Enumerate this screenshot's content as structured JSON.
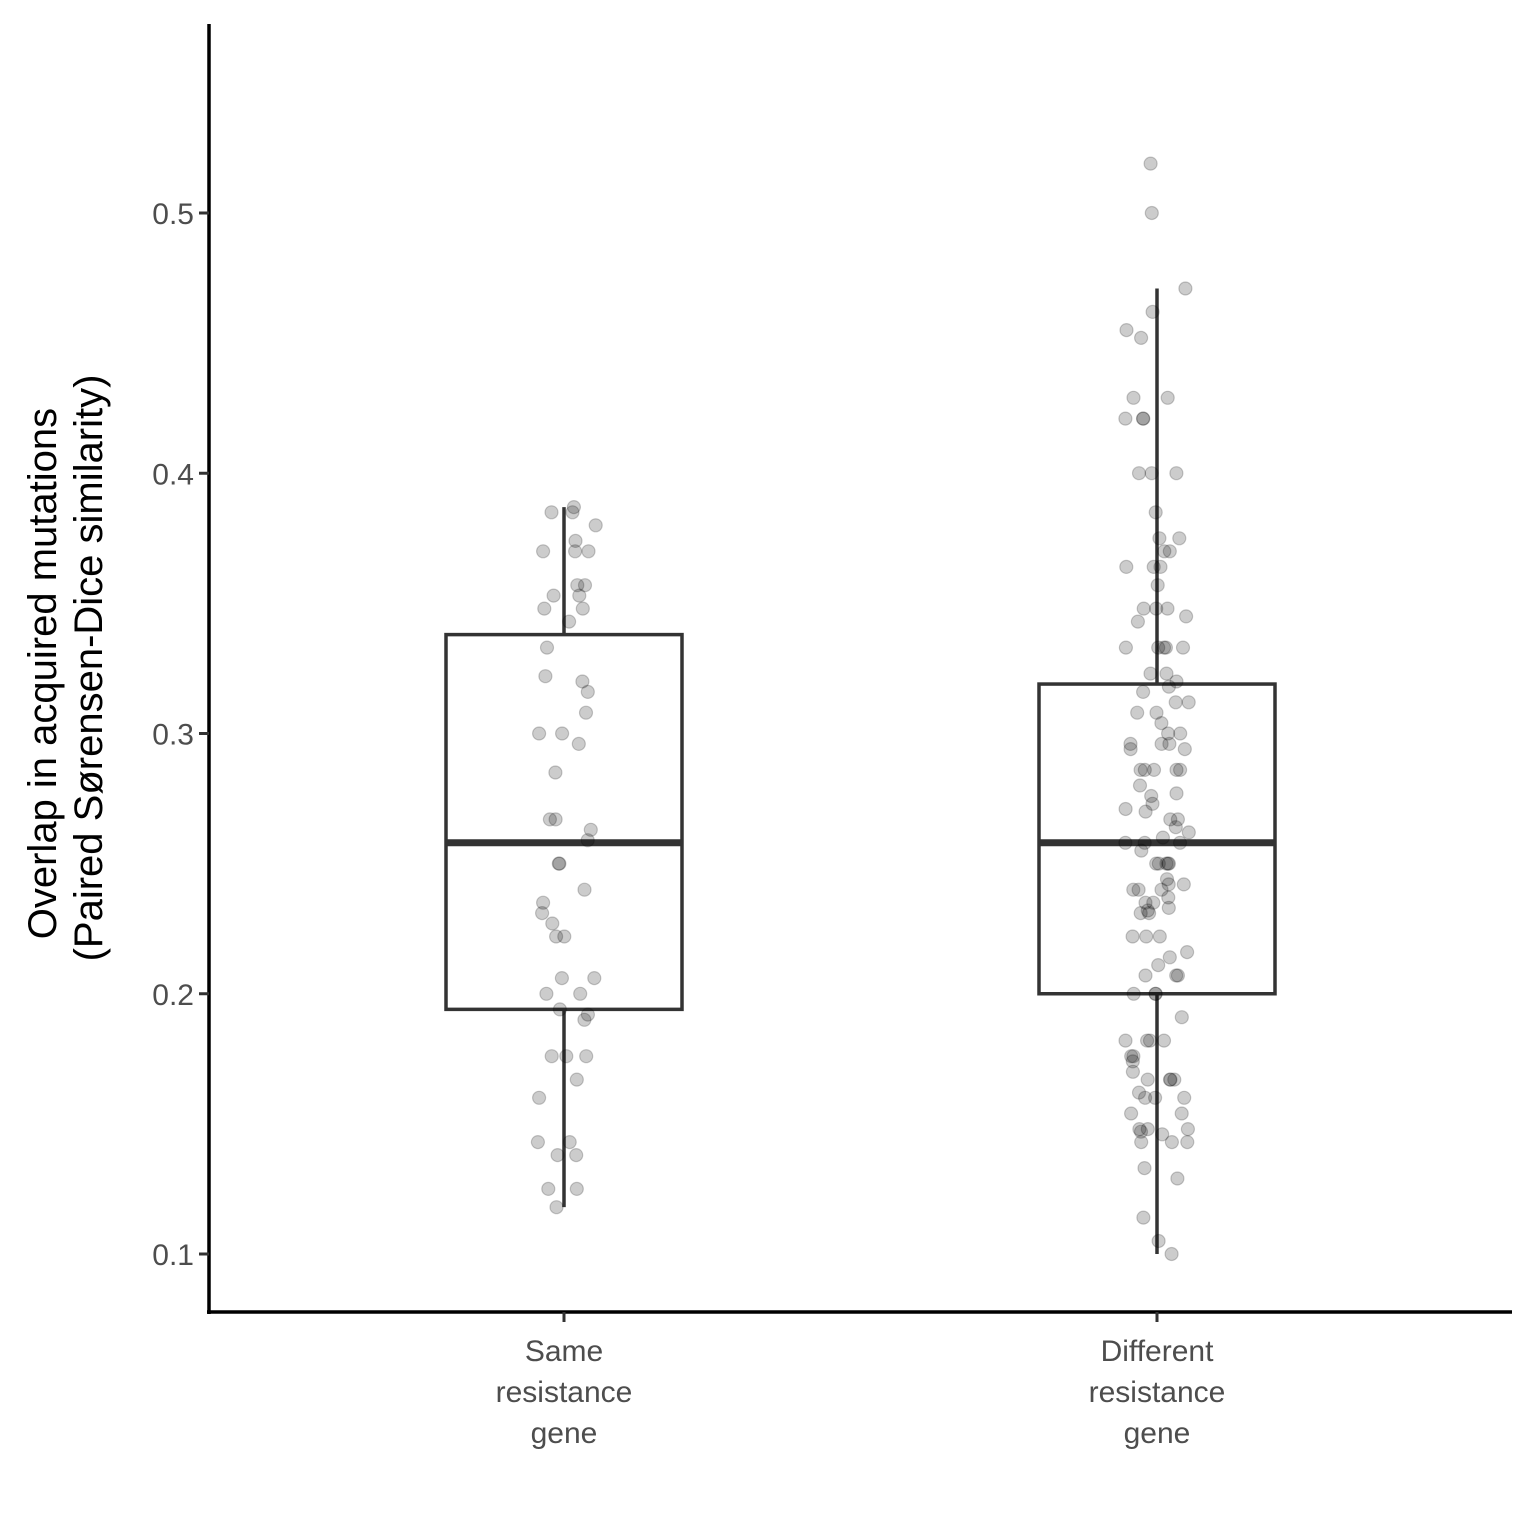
{
  "chart_data": {
    "type": "box",
    "title": "",
    "ylabel_lines": [
      "Overlap in acquired mutations",
      "(Paired Sørensen-Dice similarity)"
    ],
    "xlabel": "",
    "ylim": [
      0.078,
      0.57
    ],
    "yticks": [
      0.1,
      0.2,
      0.3,
      0.4,
      0.5
    ],
    "ytick_labels": [
      "0.1",
      "0.2",
      "0.3",
      "0.4",
      "0.5"
    ],
    "grid": false,
    "categories": [
      {
        "lines": [
          "Same",
          "resistance",
          "gene"
        ]
      },
      {
        "lines": [
          "Different",
          "resistance",
          "gene"
        ]
      }
    ],
    "boxes": [
      {
        "category": 0,
        "whisker_low": 0.118,
        "q1": 0.194,
        "median": 0.258,
        "q3": 0.338,
        "whisker_high": 0.387
      },
      {
        "category": 1,
        "whisker_low": 0.1,
        "q1": 0.2,
        "median": 0.258,
        "q3": 0.319,
        "whisker_high": 0.471
      }
    ],
    "points": [
      {
        "category": 0,
        "values": [
          0.387,
          0.385,
          0.385,
          0.38,
          0.374,
          0.37,
          0.37,
          0.37,
          0.357,
          0.357,
          0.353,
          0.353,
          0.348,
          0.348,
          0.343,
          0.333,
          0.322,
          0.32,
          0.316,
          0.308,
          0.3,
          0.3,
          0.296,
          0.285,
          0.267,
          0.267,
          0.263,
          0.259,
          0.25,
          0.25,
          0.24,
          0.235,
          0.231,
          0.227,
          0.222,
          0.222,
          0.206,
          0.206,
          0.2,
          0.2,
          0.194,
          0.192,
          0.19,
          0.176,
          0.176,
          0.176,
          0.167,
          0.16,
          0.143,
          0.143,
          0.138,
          0.138,
          0.125,
          0.125,
          0.118
        ]
      },
      {
        "category": 1,
        "values": [
          0.519,
          0.5,
          0.471,
          0.462,
          0.455,
          0.452,
          0.429,
          0.429,
          0.421,
          0.421,
          0.421,
          0.4,
          0.4,
          0.4,
          0.385,
          0.375,
          0.375,
          0.37,
          0.37,
          0.364,
          0.364,
          0.364,
          0.357,
          0.348,
          0.348,
          0.348,
          0.345,
          0.343,
          0.333,
          0.333,
          0.333,
          0.333,
          0.333,
          0.323,
          0.323,
          0.32,
          0.318,
          0.316,
          0.312,
          0.312,
          0.308,
          0.308,
          0.304,
          0.3,
          0.3,
          0.296,
          0.296,
          0.296,
          0.294,
          0.294,
          0.286,
          0.286,
          0.286,
          0.286,
          0.286,
          0.28,
          0.277,
          0.276,
          0.273,
          0.271,
          0.27,
          0.267,
          0.267,
          0.264,
          0.262,
          0.26,
          0.258,
          0.258,
          0.258,
          0.255,
          0.25,
          0.25,
          0.25,
          0.25,
          0.25,
          0.244,
          0.242,
          0.242,
          0.24,
          0.24,
          0.24,
          0.237,
          0.235,
          0.235,
          0.233,
          0.232,
          0.231,
          0.231,
          0.222,
          0.222,
          0.222,
          0.216,
          0.214,
          0.211,
          0.207,
          0.207,
          0.207,
          0.2,
          0.2,
          0.2,
          0.191,
          0.182,
          0.182,
          0.182,
          0.182,
          0.176,
          0.176,
          0.174,
          0.17,
          0.167,
          0.167,
          0.167,
          0.167,
          0.162,
          0.16,
          0.16,
          0.16,
          0.154,
          0.154,
          0.148,
          0.148,
          0.148,
          0.147,
          0.146,
          0.143,
          0.143,
          0.143,
          0.133,
          0.129,
          0.114,
          0.105,
          0.1
        ]
      }
    ]
  }
}
